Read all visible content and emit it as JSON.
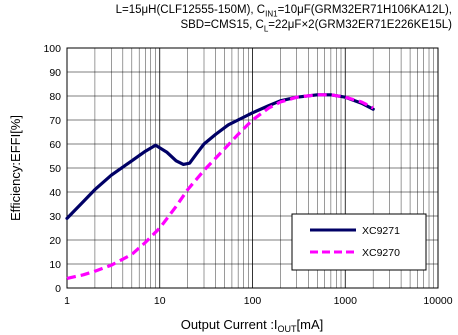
{
  "chart_data": {
    "type": "line",
    "title_lines": [
      "L=15μH(CLF12555-150M),  C_IN1=10μF(GRM32ER71H106KA12L),",
      "SBD=CMS15, C_L=22μF×2(GRM32ER71E226KE15L)"
    ],
    "title_parts": {
      "line1_a": "L=15μH(CLF12555-150M),  C",
      "line1_sub": "IN1",
      "line1_b": "=10μF(GRM32ER71H106KA12L),",
      "line2_a": "SBD=CMS15, C",
      "line2_sub": "L",
      "line2_b": "=22μF×2(GRM32ER71E226KE15L)"
    },
    "xlabel": {
      "a": "Output Current :I",
      "sub": "OUT",
      "b": "[mA]"
    },
    "ylabel": "Efficiency:EFFI[%]",
    "x_scale": "log",
    "xlim": [
      1,
      10000
    ],
    "ylim": [
      0,
      100
    ],
    "x_ticks": [
      "1",
      "10",
      "100",
      "1000",
      "10000"
    ],
    "y_ticks": [
      "0",
      "10",
      "20",
      "30",
      "40",
      "50",
      "60",
      "70",
      "80",
      "90",
      "100"
    ],
    "grid": true,
    "legend_position": "bottom-right",
    "series": [
      {
        "name": "XC9271",
        "color": "#000066",
        "style": "solid",
        "x": [
          1,
          1.5,
          2,
          3,
          5,
          7,
          9,
          12,
          15,
          18,
          21,
          25,
          30,
          40,
          55,
          70,
          100,
          150,
          200,
          300,
          500,
          700,
          1000,
          1500,
          2000
        ],
        "y": [
          29,
          36,
          41,
          47,
          53,
          57,
          59.5,
          56.5,
          53,
          51.5,
          52,
          56,
          60,
          64,
          68,
          70,
          73,
          76,
          78,
          79.5,
          80.5,
          80.5,
          79.5,
          77,
          74.5
        ]
      },
      {
        "name": "XC9270",
        "color": "#ff00ff",
        "style": "dashed",
        "x": [
          1,
          1.5,
          2,
          3,
          5,
          7,
          10,
          15,
          20,
          30,
          50,
          70,
          100,
          150,
          200,
          300,
          500,
          700,
          1000,
          1500,
          2000
        ],
        "y": [
          4,
          5.5,
          7,
          9.5,
          14,
          19,
          25,
          34,
          41,
          49,
          58,
          64,
          70,
          75,
          77.5,
          79.5,
          80.5,
          80.5,
          79.5,
          77.5,
          75
        ]
      }
    ]
  }
}
